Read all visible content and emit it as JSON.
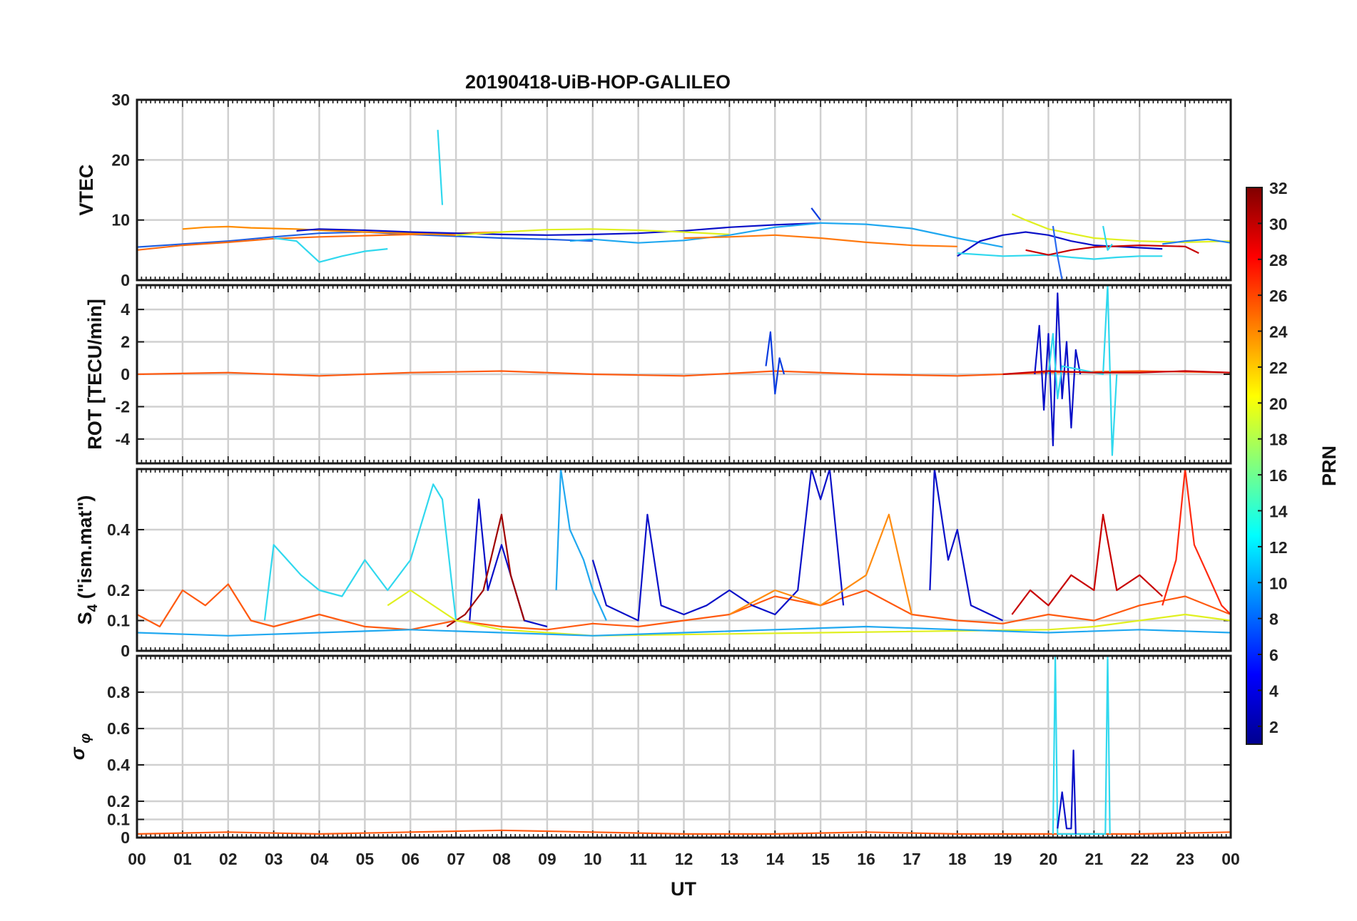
{
  "figure": {
    "title": "20190418-UiB-HOP-GALILEO"
  },
  "chart_data": [
    {
      "type": "line",
      "panel": "vtec",
      "ylabel": "VTEC",
      "ylim": [
        0,
        30
      ],
      "yticks": [
        "0",
        "10",
        "20",
        "30"
      ],
      "ytick_values": [
        0,
        10,
        20,
        30
      ],
      "xlim": [
        0,
        24
      ],
      "grid": true,
      "series": [
        {
          "color": "#1f5fe0",
          "x": [
            0,
            1,
            2,
            3,
            4,
            5,
            6,
            7,
            8,
            9,
            10
          ],
          "y": [
            5.5,
            6.0,
            6.5,
            7.2,
            7.8,
            8.0,
            7.6,
            7.3,
            7.0,
            6.8,
            6.5
          ]
        },
        {
          "color": "#ff6a10",
          "x": [
            0,
            1,
            2,
            3,
            4,
            5,
            6,
            7,
            8
          ],
          "y": [
            5.0,
            5.8,
            6.3,
            6.9,
            7.2,
            7.4,
            7.6,
            7.8,
            8.0
          ]
        },
        {
          "color": "#ff8c00",
          "x": [
            1,
            1.5,
            2,
            2.5,
            3,
            3.5,
            4,
            5,
            6,
            7
          ],
          "y": [
            8.5,
            8.8,
            8.9,
            8.7,
            8.6,
            8.5,
            8.3,
            8.0,
            7.8,
            7.5
          ]
        },
        {
          "color": "#0a10c8",
          "x": [
            3.5,
            4,
            5,
            6,
            7,
            8,
            9,
            10,
            11,
            12,
            13,
            14,
            15
          ],
          "y": [
            8.2,
            8.5,
            8.3,
            8.0,
            7.8,
            7.6,
            7.5,
            7.6,
            7.8,
            8.2,
            8.8,
            9.2,
            9.5
          ]
        },
        {
          "color": "#30d8ee",
          "x": [
            3,
            3.5,
            4,
            4.5,
            5,
            5.5
          ],
          "y": [
            7.0,
            6.5,
            3.0,
            4.0,
            4.8,
            5.2
          ]
        },
        {
          "color": "#30d8ee",
          "x": [
            6.6,
            6.7
          ],
          "y": [
            25,
            12.5
          ]
        },
        {
          "color": "#e0f020",
          "x": [
            7,
            8,
            9,
            10,
            11,
            12,
            13
          ],
          "y": [
            7.5,
            8.0,
            8.4,
            8.5,
            8.3,
            8.0,
            7.6
          ]
        },
        {
          "color": "#20a8f0",
          "x": [
            9.5,
            10,
            11,
            12,
            13,
            14,
            15,
            16,
            17,
            18,
            19
          ],
          "y": [
            6.5,
            6.8,
            6.2,
            6.6,
            7.5,
            8.8,
            9.5,
            9.3,
            8.6,
            7.0,
            5.5
          ]
        },
        {
          "color": "#0a3ce0",
          "x": [
            14.8,
            14.9,
            15.0
          ],
          "y": [
            12.0,
            11.0,
            10.0
          ]
        },
        {
          "color": "#ff7a10",
          "x": [
            12,
            13,
            14,
            15,
            16,
            17,
            18
          ],
          "y": [
            7.0,
            7.2,
            7.5,
            7.0,
            6.3,
            5.8,
            5.6
          ]
        },
        {
          "color": "#0a10c8",
          "x": [
            18,
            18.5,
            19,
            19.5,
            20,
            20.5,
            21,
            21.5,
            22,
            22.5
          ],
          "y": [
            4.0,
            6.5,
            7.5,
            8.0,
            7.5,
            6.5,
            5.8,
            5.6,
            5.4,
            5.2
          ]
        },
        {
          "color": "#e0f020",
          "x": [
            19.2,
            19.5,
            20,
            21,
            22,
            23,
            24
          ],
          "y": [
            11.0,
            10.0,
            8.5,
            7.0,
            6.5,
            6.3,
            6.5
          ]
        },
        {
          "color": "#30d8ee",
          "x": [
            18,
            19,
            20,
            20.5,
            21,
            21.5,
            22,
            22.5
          ],
          "y": [
            4.5,
            4.0,
            4.2,
            3.8,
            3.5,
            3.8,
            4.0,
            4.0
          ]
        },
        {
          "color": "#c80000",
          "x": [
            19.5,
            20,
            20.5,
            21,
            22,
            23,
            23.3
          ],
          "y": [
            5.0,
            4.2,
            5.0,
            5.5,
            5.8,
            5.6,
            4.5
          ]
        },
        {
          "color": "#2a6af0",
          "x": [
            20.1,
            20.2,
            20.3
          ],
          "y": [
            9.0,
            4.0,
            0.0
          ]
        },
        {
          "color": "#30d8ee",
          "x": [
            21.2,
            21.3,
            21.4
          ],
          "y": [
            9.0,
            5.0,
            6.0
          ]
        },
        {
          "color": "#1f80f0",
          "x": [
            22.5,
            23,
            23.5,
            24
          ],
          "y": [
            6.0,
            6.5,
            6.8,
            6.2
          ]
        }
      ]
    },
    {
      "type": "line",
      "panel": "rot",
      "ylabel": "ROT [TECU/min]",
      "ylim": [
        -5.5,
        5.5
      ],
      "yticks": [
        "-4",
        "-2",
        "0",
        "2",
        "4"
      ],
      "ytick_values": [
        -4,
        -2,
        0,
        2,
        4
      ],
      "xlim": [
        0,
        24
      ],
      "grid": true,
      "series": [
        {
          "color": "#ff5a10",
          "x": [
            0,
            2,
            4,
            6,
            8,
            10,
            12,
            14,
            16,
            18,
            20,
            22,
            24
          ],
          "y": [
            0.0,
            0.1,
            -0.1,
            0.1,
            0.2,
            0.0,
            -0.1,
            0.2,
            0.0,
            -0.1,
            0.1,
            0.2,
            0.1
          ]
        },
        {
          "color": "#0a3ce0",
          "x": [
            13.8,
            13.9,
            14.0,
            14.1,
            14.2
          ],
          "y": [
            0.5,
            2.6,
            -1.2,
            1.0,
            0.0
          ]
        },
        {
          "color": "#0a10c8",
          "x": [
            19.7,
            19.8,
            19.9,
            20.0,
            20.1,
            20.2,
            20.3,
            20.4,
            20.5,
            20.6,
            20.7
          ],
          "y": [
            0.0,
            3.0,
            -2.2,
            2.5,
            -4.4,
            5.0,
            -1.5,
            2.0,
            -3.3,
            1.5,
            0.0
          ]
        },
        {
          "color": "#30d8ee",
          "x": [
            20.0,
            20.1,
            20.2,
            20.3,
            21.2,
            21.3,
            21.4,
            21.5
          ],
          "y": [
            0.0,
            2.5,
            -1.5,
            0.5,
            0.0,
            5.5,
            -5.0,
            0.0
          ]
        },
        {
          "color": "#c80000",
          "x": [
            19,
            20,
            21,
            22,
            23,
            24
          ],
          "y": [
            0.0,
            0.2,
            0.1,
            0.1,
            0.2,
            0.1
          ]
        }
      ]
    },
    {
      "type": "line",
      "panel": "s4",
      "ylabel": "S4 (\"ism.mat\")",
      "ylim": [
        0,
        0.6
      ],
      "yticks": [
        "0",
        "0.1",
        "0.2",
        "0.4"
      ],
      "ytick_values": [
        0,
        0.1,
        0.2,
        0.4
      ],
      "xlim": [
        0,
        24
      ],
      "grid": true,
      "series": [
        {
          "color": "#ff5a10",
          "x": [
            0,
            0.5,
            1,
            1.5,
            2,
            2.5,
            3,
            3.5,
            4,
            5,
            6,
            7,
            8,
            9,
            10,
            11,
            12,
            13,
            14,
            15,
            16,
            17,
            18,
            19,
            20,
            21,
            22,
            23,
            24
          ],
          "y": [
            0.12,
            0.08,
            0.2,
            0.15,
            0.22,
            0.1,
            0.08,
            0.1,
            0.12,
            0.08,
            0.07,
            0.1,
            0.08,
            0.07,
            0.09,
            0.08,
            0.1,
            0.12,
            0.18,
            0.15,
            0.2,
            0.12,
            0.1,
            0.09,
            0.12,
            0.1,
            0.15,
            0.18,
            0.12
          ]
        },
        {
          "color": "#30d8ee",
          "x": [
            2.8,
            3.0,
            3.3,
            3.6,
            4.0,
            4.5,
            5.0,
            5.5,
            6.0,
            6.5,
            6.7,
            7.0
          ],
          "y": [
            0.1,
            0.35,
            0.3,
            0.25,
            0.2,
            0.18,
            0.3,
            0.2,
            0.3,
            0.55,
            0.5,
            0.1
          ]
        },
        {
          "color": "#0a10c8",
          "x": [
            7.3,
            7.5,
            7.7,
            8.0,
            8.5,
            9.0
          ],
          "y": [
            0.1,
            0.5,
            0.2,
            0.35,
            0.1,
            0.08
          ]
        },
        {
          "color": "#a00000",
          "x": [
            6.8,
            7.2,
            7.6,
            8.0,
            8.2,
            8.5
          ],
          "y": [
            0.08,
            0.12,
            0.2,
            0.45,
            0.25,
            0.1
          ]
        },
        {
          "color": "#20a8f0",
          "x": [
            9.2,
            9.3,
            9.5,
            9.8,
            10.0,
            10.3
          ],
          "y": [
            0.2,
            0.6,
            0.4,
            0.3,
            0.2,
            0.1
          ]
        },
        {
          "color": "#0a10c8",
          "x": [
            10.0,
            10.3,
            11.0,
            11.2,
            11.5,
            12.0,
            12.5,
            13.0,
            13.5,
            14.0,
            14.5,
            14.8,
            15.0,
            15.2,
            15.5
          ],
          "y": [
            0.3,
            0.15,
            0.1,
            0.45,
            0.15,
            0.12,
            0.15,
            0.2,
            0.15,
            0.12,
            0.2,
            0.6,
            0.5,
            0.6,
            0.15
          ]
        },
        {
          "color": "#ff8c10",
          "x": [
            13,
            14,
            15,
            16,
            16.5,
            17
          ],
          "y": [
            0.12,
            0.2,
            0.15,
            0.25,
            0.45,
            0.12
          ]
        },
        {
          "color": "#0a10c8",
          "x": [
            17.4,
            17.5,
            17.8,
            18.0,
            18.3,
            19.0
          ],
          "y": [
            0.2,
            0.6,
            0.3,
            0.4,
            0.15,
            0.1
          ]
        },
        {
          "color": "#c80000",
          "x": [
            19.2,
            19.6,
            20.0,
            20.5,
            21.0,
            21.2,
            21.5,
            22.0,
            22.5
          ],
          "y": [
            0.12,
            0.2,
            0.15,
            0.25,
            0.2,
            0.45,
            0.2,
            0.25,
            0.18
          ]
        },
        {
          "color": "#ff2a10",
          "x": [
            22.5,
            22.8,
            23.0,
            23.2,
            23.5,
            23.8,
            24
          ],
          "y": [
            0.15,
            0.3,
            0.6,
            0.35,
            0.25,
            0.15,
            0.12
          ]
        },
        {
          "color": "#e0f020",
          "x": [
            5.5,
            6,
            7,
            8,
            9,
            10,
            20,
            21,
            22,
            23,
            24
          ],
          "y": [
            0.15,
            0.2,
            0.1,
            0.07,
            0.06,
            0.05,
            0.07,
            0.08,
            0.1,
            0.12,
            0.1
          ]
        },
        {
          "color": "#20a8f0",
          "x": [
            0,
            2,
            4,
            6,
            8,
            10,
            12,
            14,
            16,
            18,
            20,
            22,
            24
          ],
          "y": [
            0.06,
            0.05,
            0.06,
            0.07,
            0.06,
            0.05,
            0.06,
            0.07,
            0.08,
            0.07,
            0.06,
            0.07,
            0.06
          ]
        }
      ]
    },
    {
      "type": "line",
      "panel": "sigma_phi",
      "ylabel": "σφ",
      "ylim": [
        0,
        1.0
      ],
      "yticks": [
        "0",
        "0.1",
        "0.2",
        "0.4",
        "0.6",
        "0.8"
      ],
      "ytick_values": [
        0,
        0.1,
        0.2,
        0.4,
        0.6,
        0.8
      ],
      "xlim": [
        0,
        24
      ],
      "grid": true,
      "series": [
        {
          "color": "#ff5a10",
          "x": [
            0,
            2,
            4,
            6,
            8,
            10,
            12,
            14,
            16,
            18,
            20,
            22,
            24
          ],
          "y": [
            0.02,
            0.03,
            0.02,
            0.03,
            0.04,
            0.03,
            0.02,
            0.02,
            0.03,
            0.02,
            0.02,
            0.02,
            0.03
          ]
        },
        {
          "color": "#30d8ee",
          "x": [
            20.1,
            20.15,
            20.2,
            21.25,
            21.3,
            21.35
          ],
          "y": [
            0.02,
            1.0,
            0.02,
            0.02,
            1.0,
            0.02
          ]
        },
        {
          "color": "#0a10c8",
          "x": [
            20.2,
            20.3,
            20.4,
            20.5,
            20.55,
            20.6
          ],
          "y": [
            0.05,
            0.25,
            0.05,
            0.05,
            0.48,
            0.02
          ]
        }
      ]
    },
    {
      "type": "heatmap",
      "panel": "colorbar",
      "label": "PRN",
      "range": [
        1,
        32
      ],
      "ticks": [
        "2",
        "4",
        "6",
        "8",
        "10",
        "12",
        "14",
        "16",
        "18",
        "20",
        "22",
        "24",
        "26",
        "28",
        "30",
        "32"
      ],
      "tick_values": [
        2,
        4,
        6,
        8,
        10,
        12,
        14,
        16,
        18,
        20,
        22,
        24,
        26,
        28,
        30,
        32
      ],
      "colormap": "jet"
    }
  ],
  "xaxis": {
    "label": "UT",
    "ticks": [
      "00",
      "01",
      "02",
      "03",
      "04",
      "05",
      "06",
      "07",
      "08",
      "09",
      "10",
      "11",
      "12",
      "13",
      "14",
      "15",
      "16",
      "17",
      "18",
      "19",
      "20",
      "21",
      "22",
      "23",
      "00"
    ]
  }
}
